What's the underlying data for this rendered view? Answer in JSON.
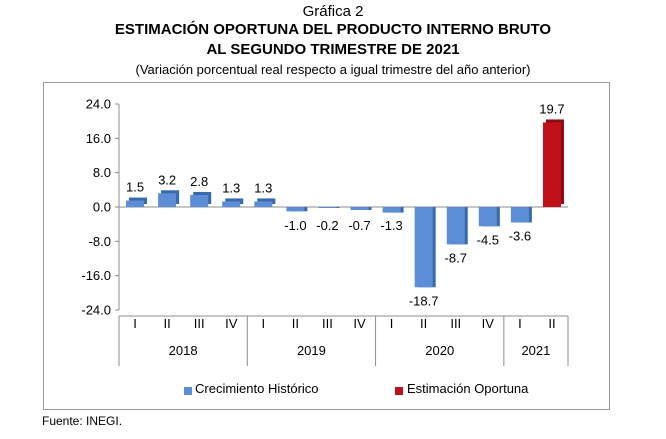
{
  "header": {
    "label": "Gráfica 2",
    "title_line1": "ESTIMACIÓN OPORTUNA DEL PRODUCTO INTERNO BRUTO",
    "title_line2": "AL SEGUNDO TRIMESTRE DE 2021",
    "subtitle": "(Variación porcentual real respecto a igual trimestre del año anterior)"
  },
  "source": "Fuente: INEGI.",
  "colors": {
    "historic": "#5B8ED6",
    "historic_side": "#3A6AAE",
    "estimate": "#C0101A",
    "estimate_side": "#8E0A12"
  },
  "chart_data": {
    "type": "bar",
    "categories": [
      "I",
      "II",
      "III",
      "IV",
      "I",
      "II",
      "III",
      "IV",
      "I",
      "II",
      "III",
      "IV",
      "I",
      "II"
    ],
    "years": [
      {
        "label": "2018",
        "quarters": 4
      },
      {
        "label": "2019",
        "quarters": 4
      },
      {
        "label": "2020",
        "quarters": 4
      },
      {
        "label": "2021",
        "quarters": 2
      }
    ],
    "values": [
      1.5,
      3.2,
      2.8,
      1.3,
      1.3,
      -1.0,
      -0.2,
      -0.7,
      -1.3,
      -18.7,
      -8.7,
      -4.5,
      -3.6,
      19.7
    ],
    "value_labels": [
      "1.5",
      "3.2",
      "2.8",
      "1.3",
      "1.3",
      "-1.0",
      "-0.2",
      "-0.7",
      "-1.3",
      "-18.7",
      "-8.7",
      "-4.5",
      "-3.6",
      "19.7"
    ],
    "series_of_bar": [
      "historic",
      "historic",
      "historic",
      "historic",
      "historic",
      "historic",
      "historic",
      "historic",
      "historic",
      "historic",
      "historic",
      "historic",
      "historic",
      "estimate"
    ],
    "series": [
      {
        "key": "historic",
        "name": "Crecimiento  Histórico"
      },
      {
        "key": "estimate",
        "name": "Estimación Oportuna"
      }
    ],
    "yticks": [
      24.0,
      16.0,
      8.0,
      0.0,
      -8.0,
      -16.0,
      -24.0
    ],
    "ytick_labels": [
      "24.0",
      "16.0",
      "8.0",
      "0.0",
      "-8.0",
      "-16.0",
      "-24.0"
    ],
    "ylim": [
      -24,
      24
    ],
    "grid": false,
    "legend_position": "bottom"
  }
}
